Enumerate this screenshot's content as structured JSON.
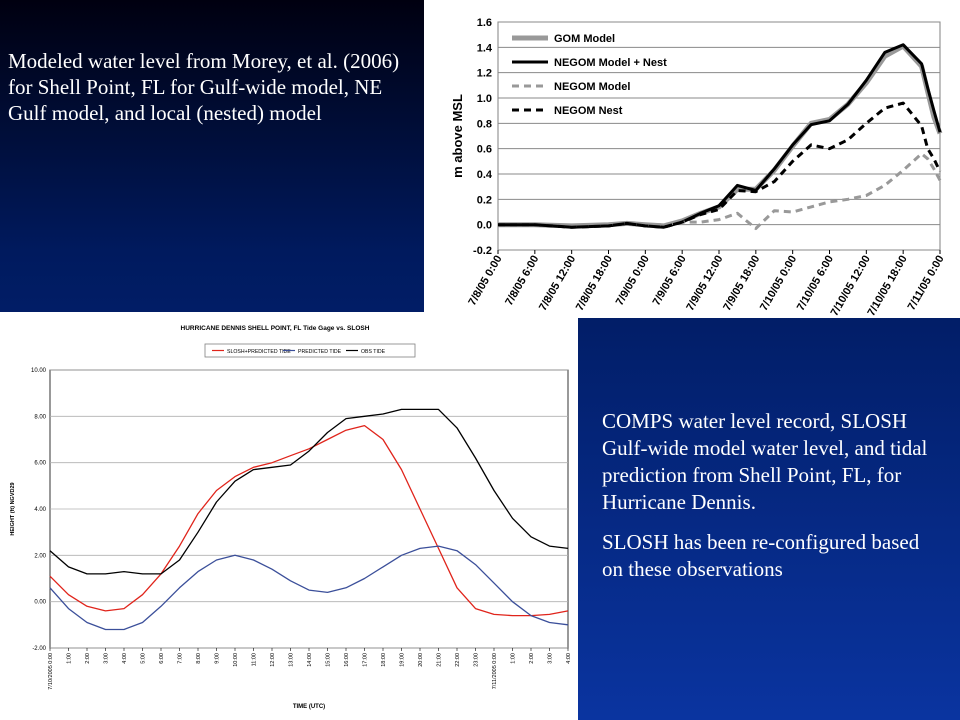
{
  "captions": {
    "top": "Modeled water level from Morey, et al. (2006) for Shell Point, FL for Gulf-wide model, NE Gulf  model, and local (nested) model",
    "bottom_1": "COMPS water level record, SLOSH Gulf-wide model water level, and tidal prediction from Shell Point, FL, for Hurricane Dennis.",
    "bottom_2": "SLOSH has been re-configured based on these observations"
  },
  "chart_data": [
    {
      "type": "line",
      "title": "",
      "xlabel": "",
      "ylabel": "m above MSL",
      "ylim": [
        -0.2,
        1.6
      ],
      "yticks": [
        "-0.2",
        "0.0",
        "0.2",
        "0.4",
        "0.6",
        "0.8",
        "1.0",
        "1.2",
        "1.4",
        "1.6"
      ],
      "xticks": [
        "7/8/05 0:00",
        "7/8/05 6:00",
        "7/8/05 12:00",
        "7/8/05 18:00",
        "7/9/05 0:00",
        "7/9/05 6:00",
        "7/9/05 12:00",
        "7/9/05 18:00",
        "7/10/05 0:00",
        "7/10/05 6:00",
        "7/10/05 12:00",
        "7/10/05 18:00",
        "7/11/05 0:00"
      ],
      "grid": true,
      "legend": "top-left",
      "series": [
        {
          "name": "GOM Model",
          "color": "#999999",
          "style": "solid-thick",
          "x": [
            0,
            6,
            12,
            18,
            21,
            24,
            27,
            30,
            33,
            36,
            39,
            42,
            45,
            48,
            51,
            54,
            57,
            60,
            63,
            66,
            69,
            70,
            71,
            72
          ],
          "y": [
            0.0,
            0.0,
            -0.01,
            0.0,
            0.01,
            0.0,
            -0.01,
            0.03,
            0.09,
            0.14,
            0.28,
            0.28,
            0.43,
            0.62,
            0.8,
            0.83,
            0.95,
            1.12,
            1.33,
            1.41,
            1.25,
            1.05,
            0.85,
            0.72
          ]
        },
        {
          "name": "NEGOM Model + Nest",
          "color": "#000000",
          "style": "solid",
          "x": [
            0,
            6,
            12,
            18,
            21,
            24,
            27,
            30,
            33,
            36,
            39,
            42,
            45,
            48,
            51,
            54,
            57,
            60,
            63,
            66,
            69,
            70,
            71,
            72
          ],
          "y": [
            0.0,
            0.0,
            -0.02,
            -0.01,
            0.01,
            -0.01,
            -0.02,
            0.02,
            0.09,
            0.15,
            0.31,
            0.27,
            0.44,
            0.63,
            0.79,
            0.82,
            0.95,
            1.14,
            1.36,
            1.42,
            1.27,
            1.08,
            0.9,
            0.73
          ]
        },
        {
          "name": "NEGOM Model",
          "color": "#999999",
          "style": "dashed",
          "x": [
            0,
            6,
            12,
            18,
            21,
            24,
            27,
            30,
            33,
            36,
            39,
            42,
            45,
            48,
            51,
            54,
            57,
            60,
            63,
            66,
            69,
            70,
            71,
            72
          ],
          "y": [
            0.0,
            0.0,
            -0.01,
            0.0,
            0.01,
            0.0,
            0.0,
            0.02,
            0.02,
            0.04,
            0.09,
            -0.03,
            0.11,
            0.1,
            0.14,
            0.18,
            0.2,
            0.23,
            0.31,
            0.43,
            0.56,
            0.52,
            0.44,
            0.35
          ]
        },
        {
          "name": "NEGOM Nest",
          "color": "#000000",
          "style": "dashed",
          "x": [
            0,
            6,
            12,
            18,
            21,
            24,
            27,
            30,
            33,
            36,
            39,
            42,
            45,
            48,
            51,
            54,
            57,
            60,
            63,
            66,
            69,
            70,
            71,
            72
          ],
          "y": [
            0.0,
            0.0,
            -0.02,
            -0.01,
            0.01,
            -0.01,
            -0.02,
            0.02,
            0.08,
            0.12,
            0.27,
            0.26,
            0.34,
            0.5,
            0.63,
            0.6,
            0.67,
            0.8,
            0.92,
            0.96,
            0.78,
            0.6,
            0.52,
            0.42
          ]
        }
      ]
    },
    {
      "type": "line",
      "title": "HURRICANE DENNIS  SHELL POINT, FL Tide Gage vs. SLOSH",
      "xlabel": "TIME (UTC)",
      "ylabel": "HEIGHT (ft) NGVD29",
      "ylim": [
        -2.0,
        10.0
      ],
      "yticks": [
        "10.00",
        "8.00",
        "6.00",
        "4.00",
        "2.00",
        "0.00",
        "-2.00"
      ],
      "xticks": [
        "7/10/2005 0:00",
        "1:00",
        "2:00",
        "3:00",
        "4:00",
        "5:00",
        "6:00",
        "7:00",
        "8:00",
        "9:00",
        "10:00",
        "11:00",
        "12:00",
        "13:00",
        "14:00",
        "15:00",
        "16:00",
        "17:00",
        "18:00",
        "19:00",
        "20:00",
        "21:00",
        "22:00",
        "23:00",
        "7/11/2005 0:00",
        "1:00",
        "2:00",
        "3:00",
        "4:00"
      ],
      "grid": true,
      "legend": "top",
      "series": [
        {
          "name": "SLOSH+PREDICTED TIDE",
          "color": "#e0241b",
          "x": [
            0,
            1,
            2,
            3,
            4,
            5,
            6,
            7,
            8,
            9,
            10,
            11,
            12,
            13,
            14,
            15,
            16,
            17,
            18,
            19,
            20,
            21,
            22,
            23,
            24,
            25,
            26,
            27,
            28
          ],
          "y": [
            1.1,
            0.3,
            -0.2,
            -0.4,
            -0.3,
            0.3,
            1.2,
            2.4,
            3.8,
            4.8,
            5.4,
            5.8,
            6.0,
            6.3,
            6.6,
            7.0,
            7.4,
            7.6,
            7.0,
            5.7,
            4.0,
            2.3,
            0.6,
            -0.3,
            -0.55,
            -0.6,
            -0.6,
            -0.55,
            -0.4
          ]
        },
        {
          "name": "PREDICTED TIDE",
          "color": "#3b4f9a",
          "x": [
            0,
            1,
            2,
            3,
            4,
            5,
            6,
            7,
            8,
            9,
            10,
            11,
            12,
            13,
            14,
            15,
            16,
            17,
            18,
            19,
            20,
            21,
            22,
            23,
            24,
            25,
            26,
            27,
            28
          ],
          "y": [
            0.6,
            -0.3,
            -0.9,
            -1.2,
            -1.2,
            -0.9,
            -0.2,
            0.6,
            1.3,
            1.8,
            2.0,
            1.8,
            1.4,
            0.9,
            0.5,
            0.4,
            0.6,
            1.0,
            1.5,
            2.0,
            2.3,
            2.4,
            2.2,
            1.6,
            0.8,
            0.0,
            -0.6,
            -0.9,
            -1.0
          ]
        },
        {
          "name": "OBS TIDE",
          "color": "#000000",
          "x": [
            0,
            1,
            2,
            3,
            4,
            5,
            6,
            7,
            8,
            9,
            10,
            11,
            12,
            13,
            14,
            15,
            16,
            17,
            18,
            19,
            20,
            21,
            22,
            23,
            24,
            25,
            26,
            27,
            28
          ],
          "y": [
            2.2,
            1.5,
            1.2,
            1.2,
            1.3,
            1.2,
            1.2,
            1.8,
            3.0,
            4.3,
            5.2,
            5.7,
            5.8,
            5.9,
            6.5,
            7.3,
            7.9,
            8.0,
            8.1,
            8.3,
            8.3,
            8.3,
            7.5,
            6.2,
            4.8,
            3.6,
            2.8,
            2.4,
            2.3
          ]
        }
      ]
    }
  ]
}
